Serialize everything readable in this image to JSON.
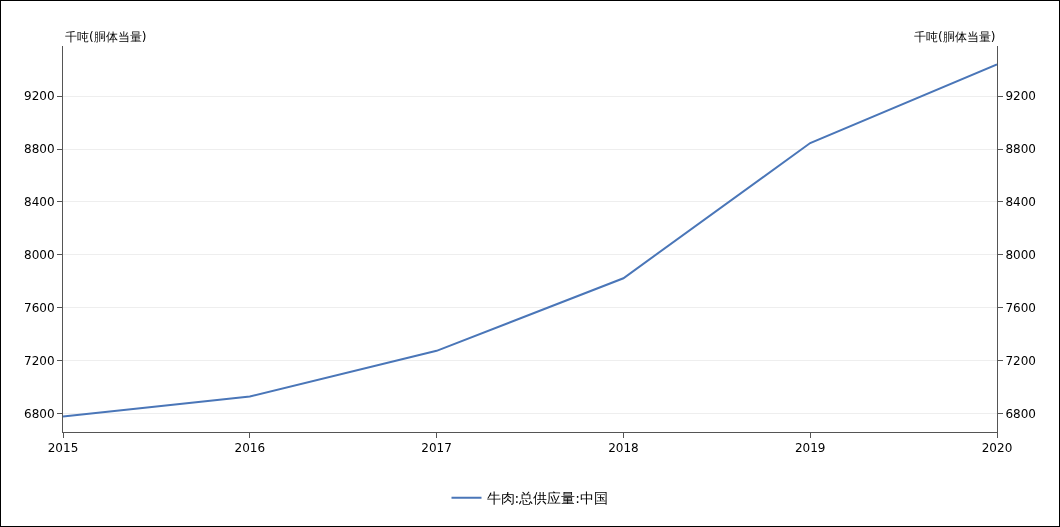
{
  "chart_data": {
    "type": "line",
    "ylabel": "千吨(胴体当量)",
    "y2label": "千吨(胴体当量)",
    "x": [
      2015,
      2016,
      2017,
      2018,
      2019,
      2020
    ],
    "series": [
      {
        "name": "牛肉:总供应量:中国",
        "color": "#4a76b8",
        "values": [
          6777,
          6928,
          7274,
          7823,
          8846,
          9440
        ]
      }
    ],
    "xlim": [
      2015,
      2020
    ],
    "xticks": [
      2015,
      2016,
      2017,
      2018,
      2019,
      2020
    ],
    "ylim": [
      6660,
      9580
    ],
    "yticks": [
      6800,
      7200,
      7600,
      8000,
      8400,
      8800,
      9200
    ],
    "y2lim": [
      6660,
      9580
    ],
    "y2ticks": [
      6800,
      7200,
      7600,
      8000,
      8400,
      8800,
      9200
    ],
    "grid": "y",
    "legend": "bottom",
    "marker": "none",
    "line_style": "solid"
  }
}
